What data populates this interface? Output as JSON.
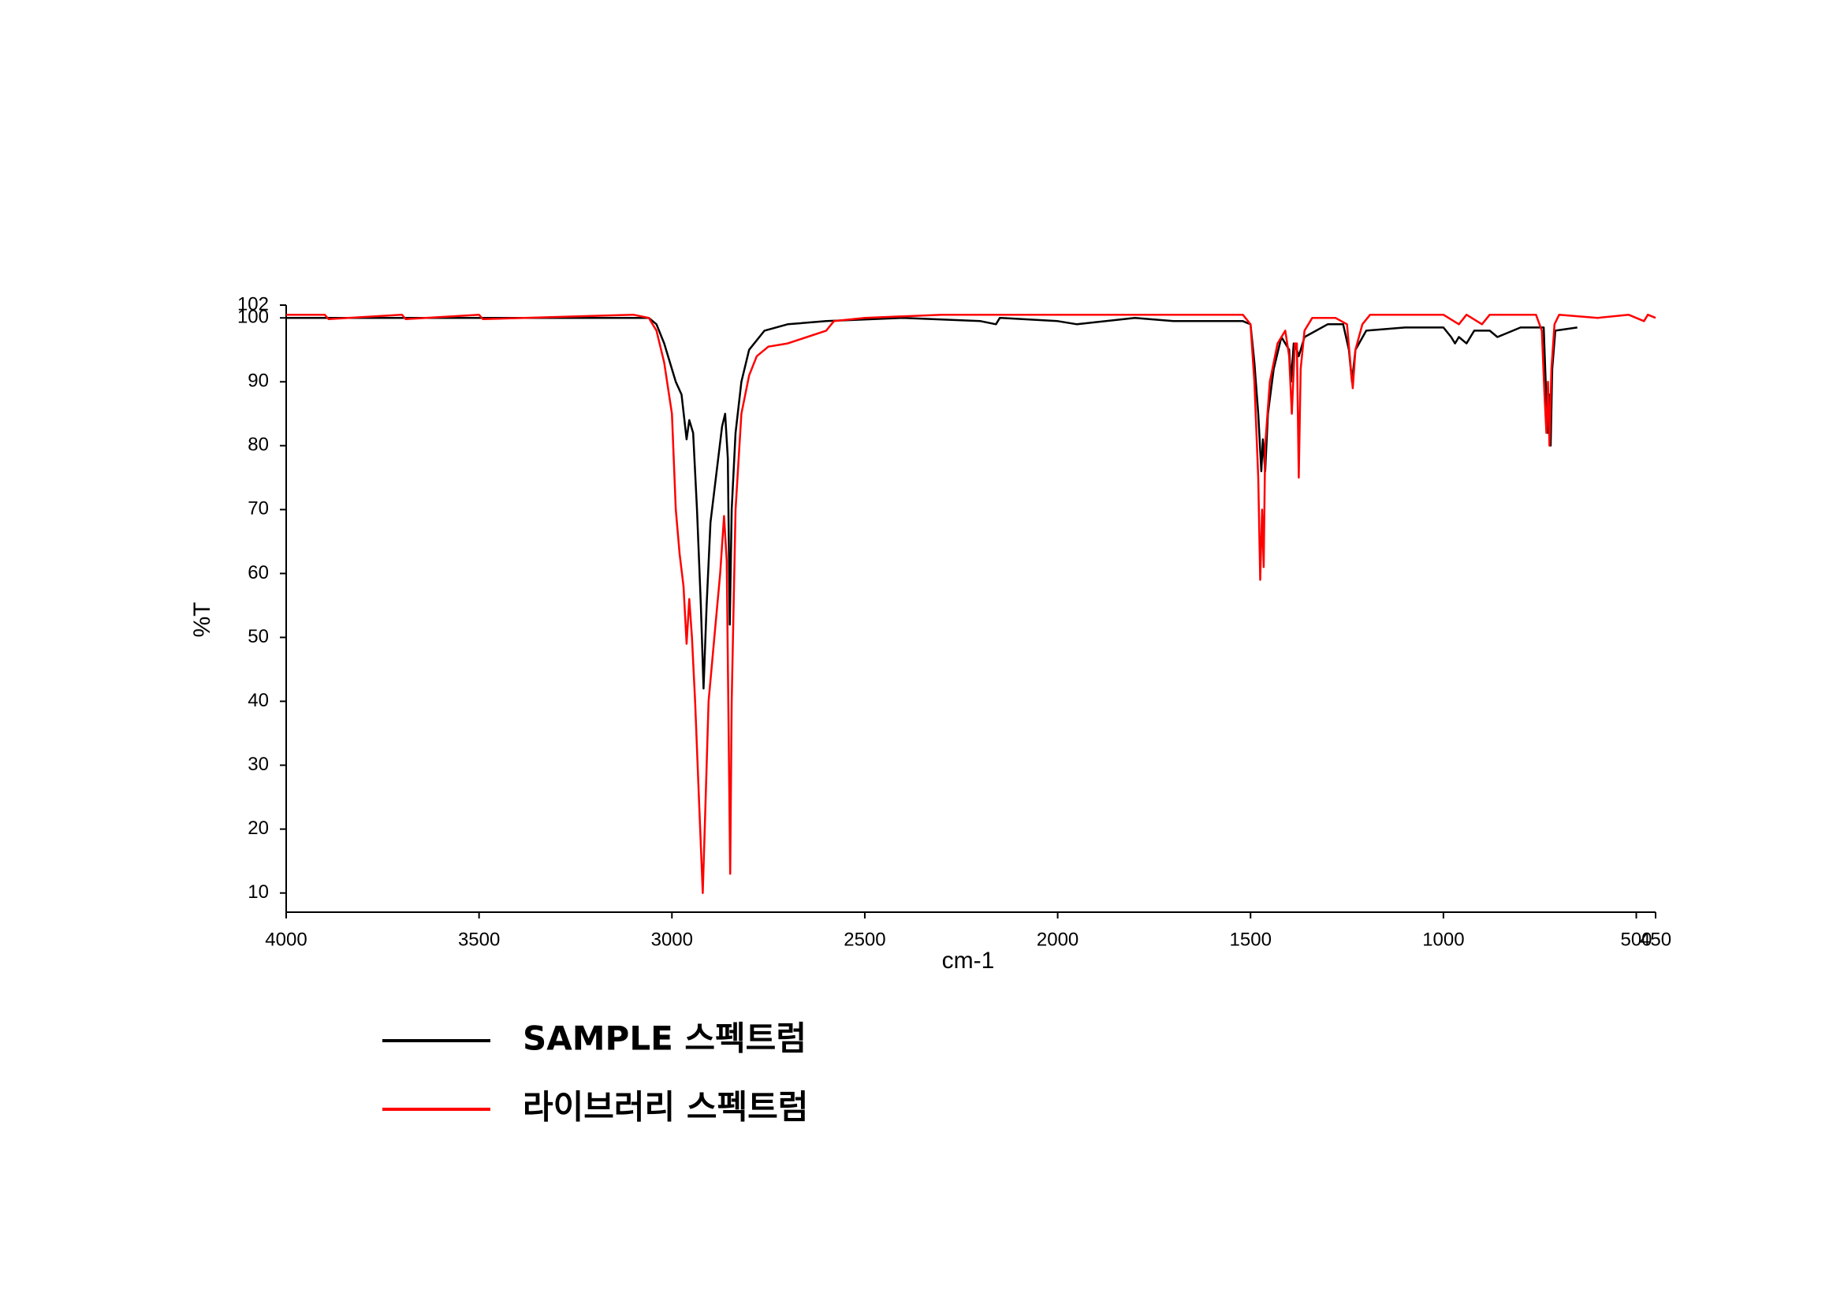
{
  "chart_data": {
    "type": "line",
    "xlabel": "cm-1",
    "ylabel": "%T",
    "xlim": [
      4000,
      450
    ],
    "ylim": [
      7,
      102
    ],
    "xticks": [
      4000,
      3500,
      3000,
      2500,
      2000,
      1500,
      1000,
      500,
      450
    ],
    "yticks": [
      10,
      20,
      30,
      40,
      50,
      60,
      70,
      80,
      90,
      100,
      102
    ],
    "grid": false,
    "legend": "bottom",
    "series": [
      {
        "name": "SAMPLE 스펙트럼",
        "color": "#000000",
        "x": [
          4000,
          3100,
          3060,
          3040,
          3020,
          3000,
          2990,
          2975,
          2962,
          2955,
          2945,
          2935,
          2925,
          2918,
          2910,
          2900,
          2880,
          2870,
          2862,
          2855,
          2850,
          2845,
          2835,
          2820,
          2800,
          2760,
          2700,
          2600,
          2400,
          2200,
          2160,
          2150,
          2000,
          1950,
          1800,
          1700,
          1520,
          1500,
          1490,
          1480,
          1472,
          1468,
          1462,
          1455,
          1440,
          1420,
          1400,
          1395,
          1388,
          1380,
          1375,
          1360,
          1300,
          1260,
          1245,
          1237,
          1228,
          1200,
          1100,
          1000,
          980,
          970,
          960,
          940,
          920,
          880,
          860,
          800,
          740,
          735,
          730,
          725,
          722,
          718,
          710,
          653
        ],
        "values": [
          100,
          100,
          100,
          99,
          96,
          92,
          90,
          88,
          81,
          84,
          82,
          70,
          55,
          42,
          55,
          68,
          78,
          83,
          85,
          78,
          52,
          70,
          82,
          90,
          95,
          98,
          99,
          99.5,
          100,
          99.5,
          99,
          100,
          99.5,
          99,
          100,
          99.5,
          99.5,
          99,
          93,
          85,
          76,
          81,
          76,
          85,
          92,
          97,
          95,
          90,
          96,
          95,
          94,
          97,
          99,
          99,
          95,
          90,
          95,
          98,
          98.5,
          98.5,
          97,
          96,
          97,
          96,
          98,
          98,
          97,
          98.5,
          98.5,
          90,
          82,
          88,
          80,
          92,
          98,
          98.5
        ]
      },
      {
        "name": "라이브러리 스펙트럼",
        "color": "#ff0000",
        "x": [
          4000,
          3900,
          3890,
          3700,
          3690,
          3500,
          3490,
          3100,
          3060,
          3040,
          3020,
          3000,
          2990,
          2980,
          2970,
          2962,
          2955,
          2948,
          2940,
          2930,
          2920,
          2915,
          2905,
          2890,
          2875,
          2865,
          2858,
          2852,
          2849,
          2845,
          2835,
          2820,
          2800,
          2780,
          2750,
          2700,
          2600,
          2580,
          2500,
          2300,
          1520,
          1500,
          1490,
          1480,
          1475,
          1470,
          1466,
          1462,
          1450,
          1430,
          1410,
          1400,
          1393,
          1385,
          1380,
          1375,
          1370,
          1360,
          1340,
          1280,
          1250,
          1240,
          1235,
          1228,
          1210,
          1190,
          1000,
          960,
          940,
          900,
          880,
          760,
          745,
          738,
          733,
          729,
          725,
          720,
          712,
          700,
          600,
          520,
          480,
          470,
          450
        ],
        "values": [
          100.5,
          100.5,
          99.8,
          100.5,
          99.8,
          100.5,
          99.8,
          100.5,
          100,
          98,
          93,
          85,
          70,
          63,
          58,
          49,
          56,
          50,
          40,
          25,
          10,
          20,
          40,
          50,
          60,
          69,
          62,
          30,
          13,
          40,
          70,
          85,
          91,
          94,
          95.5,
          96,
          98,
          99.5,
          100,
          100.5,
          100.5,
          99,
          90,
          75,
          59,
          70,
          61,
          80,
          90,
          96,
          98,
          94,
          85,
          96,
          96,
          75,
          92,
          98,
          100,
          100,
          99,
          92,
          89,
          95,
          99,
          100.5,
          100.5,
          99,
          100.5,
          99,
          100.5,
          100.5,
          98,
          88,
          82,
          90,
          80,
          92,
          99,
          100.5,
          100,
          100.5,
          99.5,
          100.5,
          100
        ]
      }
    ]
  }
}
